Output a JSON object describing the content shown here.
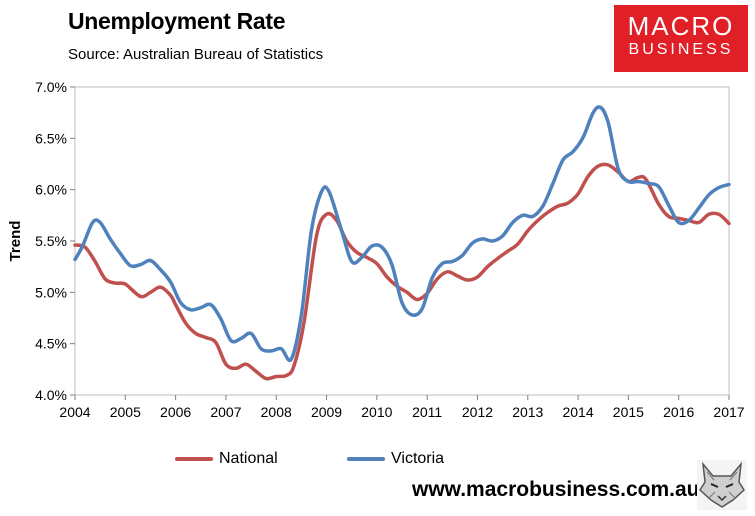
{
  "header": {
    "title": "Unemployment Rate",
    "subtitle": "Source: Australian Bureau of Statistics"
  },
  "logo": {
    "line1": "MACRO",
    "line2": "BUSINESS",
    "color": "#e01f26"
  },
  "footer": {
    "url": "www.macrobusiness.com.au",
    "emblem_icon": "wolf-emblem-icon"
  },
  "chart_data": {
    "type": "line",
    "title": "Unemployment Rate",
    "subtitle": "Source: Australian Bureau of Statistics",
    "xlabel": "",
    "ylabel": "Trend",
    "xlim": [
      2004,
      2017
    ],
    "ylim": [
      4.0,
      7.0
    ],
    "x_ticks": [
      "2004",
      "2005",
      "2006",
      "2007",
      "2008",
      "2009",
      "2010",
      "2011",
      "2012",
      "2013",
      "2014",
      "2015",
      "2016",
      "2017"
    ],
    "y_ticks": [
      "4.0%",
      "4.5%",
      "5.0%",
      "5.5%",
      "6.0%",
      "6.5%",
      "7.0%"
    ],
    "y_tick_values": [
      4.0,
      4.5,
      5.0,
      5.5,
      6.0,
      6.5,
      7.0
    ],
    "grid": false,
    "legend": "bottom",
    "series": [
      {
        "name": "National",
        "color": "#c0504d",
        "points": [
          [
            2004.0,
            5.46
          ],
          [
            2004.2,
            5.44
          ],
          [
            2004.4,
            5.3
          ],
          [
            2004.6,
            5.13
          ],
          [
            2004.8,
            5.09
          ],
          [
            2005.0,
            5.08
          ],
          [
            2005.3,
            4.96
          ],
          [
            2005.5,
            5.0
          ],
          [
            2005.7,
            5.05
          ],
          [
            2005.9,
            4.97
          ],
          [
            2006.0,
            4.88
          ],
          [
            2006.2,
            4.7
          ],
          [
            2006.4,
            4.6
          ],
          [
            2006.6,
            4.56
          ],
          [
            2006.8,
            4.51
          ],
          [
            2007.0,
            4.3
          ],
          [
            2007.2,
            4.26
          ],
          [
            2007.4,
            4.3
          ],
          [
            2007.6,
            4.23
          ],
          [
            2007.8,
            4.16
          ],
          [
            2008.0,
            4.18
          ],
          [
            2008.2,
            4.19
          ],
          [
            2008.35,
            4.28
          ],
          [
            2008.55,
            4.7
          ],
          [
            2008.8,
            5.55
          ],
          [
            2009.0,
            5.76
          ],
          [
            2009.2,
            5.7
          ],
          [
            2009.4,
            5.5
          ],
          [
            2009.6,
            5.39
          ],
          [
            2009.8,
            5.34
          ],
          [
            2010.0,
            5.28
          ],
          [
            2010.2,
            5.15
          ],
          [
            2010.4,
            5.06
          ],
          [
            2010.6,
            5.0
          ],
          [
            2010.8,
            4.93
          ],
          [
            2011.0,
            4.99
          ],
          [
            2011.2,
            5.13
          ],
          [
            2011.4,
            5.2
          ],
          [
            2011.6,
            5.16
          ],
          [
            2011.8,
            5.12
          ],
          [
            2012.0,
            5.15
          ],
          [
            2012.2,
            5.25
          ],
          [
            2012.4,
            5.33
          ],
          [
            2012.6,
            5.4
          ],
          [
            2012.8,
            5.47
          ],
          [
            2013.0,
            5.6
          ],
          [
            2013.2,
            5.7
          ],
          [
            2013.4,
            5.78
          ],
          [
            2013.6,
            5.84
          ],
          [
            2013.8,
            5.87
          ],
          [
            2014.0,
            5.96
          ],
          [
            2014.2,
            6.13
          ],
          [
            2014.4,
            6.23
          ],
          [
            2014.6,
            6.24
          ],
          [
            2014.8,
            6.17
          ],
          [
            2015.0,
            6.08
          ],
          [
            2015.2,
            6.12
          ],
          [
            2015.35,
            6.1
          ],
          [
            2015.6,
            5.86
          ],
          [
            2015.8,
            5.74
          ],
          [
            2016.0,
            5.72
          ],
          [
            2016.2,
            5.7
          ],
          [
            2016.4,
            5.68
          ],
          [
            2016.6,
            5.76
          ],
          [
            2016.8,
            5.76
          ],
          [
            2017.0,
            5.67
          ]
        ]
      },
      {
        "name": "Victoria",
        "color": "#4f81bd",
        "points": [
          [
            2004.0,
            5.32
          ],
          [
            2004.15,
            5.45
          ],
          [
            2004.35,
            5.68
          ],
          [
            2004.5,
            5.68
          ],
          [
            2004.7,
            5.52
          ],
          [
            2004.9,
            5.38
          ],
          [
            2005.1,
            5.26
          ],
          [
            2005.3,
            5.27
          ],
          [
            2005.5,
            5.31
          ],
          [
            2005.7,
            5.22
          ],
          [
            2005.9,
            5.1
          ],
          [
            2006.1,
            4.9
          ],
          [
            2006.3,
            4.83
          ],
          [
            2006.5,
            4.85
          ],
          [
            2006.7,
            4.88
          ],
          [
            2006.9,
            4.74
          ],
          [
            2007.1,
            4.53
          ],
          [
            2007.3,
            4.55
          ],
          [
            2007.5,
            4.6
          ],
          [
            2007.7,
            4.45
          ],
          [
            2007.9,
            4.43
          ],
          [
            2008.1,
            4.45
          ],
          [
            2008.3,
            4.35
          ],
          [
            2008.5,
            4.78
          ],
          [
            2008.7,
            5.6
          ],
          [
            2008.9,
            5.98
          ],
          [
            2009.05,
            5.98
          ],
          [
            2009.3,
            5.6
          ],
          [
            2009.5,
            5.3
          ],
          [
            2009.7,
            5.34
          ],
          [
            2009.9,
            5.45
          ],
          [
            2010.1,
            5.44
          ],
          [
            2010.3,
            5.27
          ],
          [
            2010.5,
            4.9
          ],
          [
            2010.7,
            4.78
          ],
          [
            2010.9,
            4.84
          ],
          [
            2011.1,
            5.14
          ],
          [
            2011.3,
            5.28
          ],
          [
            2011.5,
            5.3
          ],
          [
            2011.7,
            5.36
          ],
          [
            2011.9,
            5.48
          ],
          [
            2012.1,
            5.52
          ],
          [
            2012.3,
            5.5
          ],
          [
            2012.5,
            5.55
          ],
          [
            2012.7,
            5.68
          ],
          [
            2012.9,
            5.75
          ],
          [
            2013.1,
            5.74
          ],
          [
            2013.3,
            5.84
          ],
          [
            2013.5,
            6.06
          ],
          [
            2013.7,
            6.29
          ],
          [
            2013.9,
            6.37
          ],
          [
            2014.1,
            6.51
          ],
          [
            2014.3,
            6.75
          ],
          [
            2014.45,
            6.8
          ],
          [
            2014.6,
            6.65
          ],
          [
            2014.8,
            6.2
          ],
          [
            2015.0,
            6.08
          ],
          [
            2015.2,
            6.08
          ],
          [
            2015.4,
            6.06
          ],
          [
            2015.6,
            6.03
          ],
          [
            2015.8,
            5.85
          ],
          [
            2016.0,
            5.68
          ],
          [
            2016.2,
            5.7
          ],
          [
            2016.4,
            5.82
          ],
          [
            2016.6,
            5.95
          ],
          [
            2016.8,
            6.02
          ],
          [
            2017.0,
            6.05
          ]
        ]
      }
    ]
  }
}
